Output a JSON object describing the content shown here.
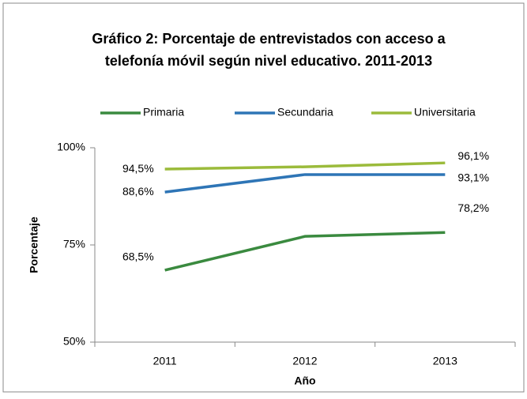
{
  "chart_data": {
    "type": "line",
    "title": [
      "Gráfico 2: Porcentaje de entrevistados con acceso a",
      "telefonía móvil según nivel educativo. 2011-2013"
    ],
    "x_label": "Año",
    "y_label": "Porcentaje",
    "categories": [
      "2011",
      "2012",
      "2013"
    ],
    "series": [
      {
        "name": "Primaria",
        "color": "#3a8a3f",
        "values": [
          68.5,
          77.2,
          78.2
        ],
        "value_labels": [
          "68,5%",
          null,
          "78,2%"
        ]
      },
      {
        "name": "Secundaria",
        "color": "#2e75b6",
        "values": [
          88.6,
          93.1,
          93.1
        ],
        "value_labels": [
          "88,6%",
          null,
          "93,1%"
        ]
      },
      {
        "name": "Universitaria",
        "color": "#9bbb3b",
        "values": [
          94.5,
          95.1,
          96.1
        ],
        "value_labels": [
          "94,5%",
          null,
          "96,1%"
        ]
      }
    ],
    "ylim": [
      50,
      100
    ],
    "yticks": [
      {
        "value": 50,
        "label": "50%"
      },
      {
        "value": 75,
        "label": "75%"
      },
      {
        "value": 100,
        "label": "100%"
      }
    ],
    "legend": "top"
  }
}
